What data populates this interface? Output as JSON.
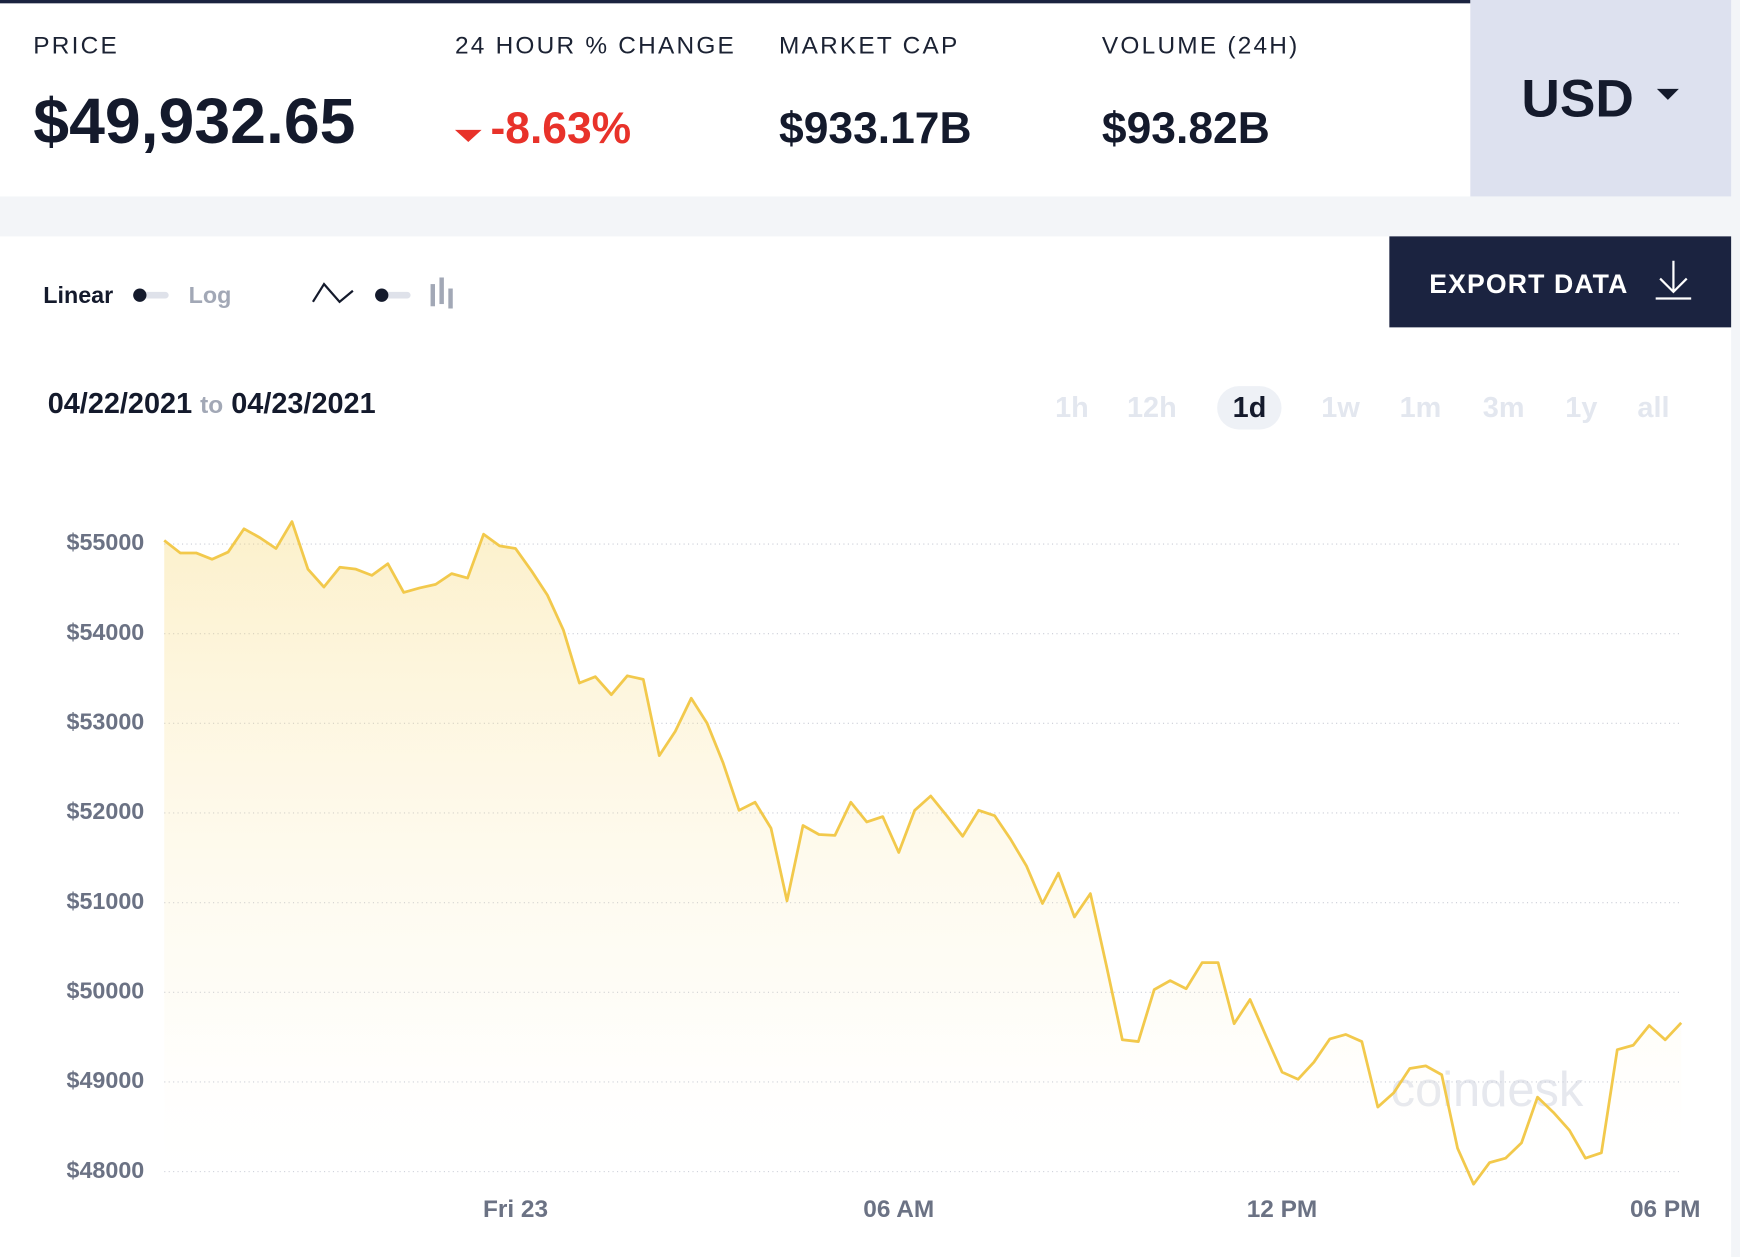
{
  "header": {
    "price_label": "PRICE",
    "price": "$49,932.65",
    "change_label": "24 HOUR % CHANGE",
    "change": "-8.63%",
    "market_cap_label": "MARKET CAP",
    "market_cap": "$933.17B",
    "volume_label": "VOLUME (24H)",
    "volume": "$93.82B",
    "currency": "USD"
  },
  "controls": {
    "linear": "Linear",
    "log": "Log",
    "export": "EXPORT DATA",
    "date_from": "04/22/2021",
    "date_to_word": "to",
    "date_to": "04/23/2021",
    "ranges": [
      "1h",
      "12h",
      "1d",
      "1w",
      "1m",
      "3m",
      "1y",
      "all"
    ],
    "active_range": "1d"
  },
  "watermark": "coindesk",
  "chart_data": {
    "type": "area",
    "color": "#f2c94c",
    "x": [
      -5.5,
      -5.25,
      -5,
      -4.75,
      -4.5,
      -4.25,
      -4,
      -3.75,
      -3.5,
      -3.25,
      -3,
      -2.75,
      -2.5,
      -2.25,
      -2,
      -1.75,
      -1.5,
      -1.25,
      -1,
      -0.75,
      -0.5,
      -0.25,
      0,
      0.25,
      0.5,
      0.75,
      1,
      1.25,
      1.5,
      1.75,
      2,
      2.25,
      2.5,
      2.75,
      3,
      3.25,
      3.5,
      3.75,
      4,
      4.25,
      4.5,
      4.75,
      5,
      5.25,
      5.5,
      5.75,
      6,
      6.25,
      6.5,
      6.75,
      7,
      7.25,
      7.5,
      7.75,
      8,
      8.25,
      8.5,
      8.75,
      9,
      9.25,
      9.5,
      9.75,
      10,
      10.25,
      10.5,
      10.75,
      11,
      11.25,
      11.5,
      11.75,
      12,
      12.25,
      12.5,
      12.75,
      13,
      13.25,
      13.5,
      13.75,
      14,
      14.25,
      14.5,
      14.75,
      15,
      15.25,
      15.5,
      15.75,
      16,
      16.25,
      16.5,
      16.75,
      17,
      17.25,
      17.5,
      17.75,
      18,
      18.25
    ],
    "values": [
      55040,
      54900,
      54900,
      54830,
      54910,
      55170,
      55070,
      54950,
      55250,
      54720,
      54520,
      54740,
      54720,
      54650,
      54780,
      54460,
      54510,
      54550,
      54670,
      54620,
      55110,
      54980,
      54950,
      54700,
      54430,
      54040,
      53450,
      53520,
      53320,
      53530,
      53490,
      52640,
      52910,
      53280,
      53000,
      52560,
      52030,
      52120,
      51830,
      51020,
      51860,
      51760,
      51750,
      52120,
      51900,
      51960,
      51560,
      52030,
      52190,
      51970,
      51740,
      52030,
      51970,
      51710,
      51410,
      50990,
      51330,
      50840,
      51100,
      50300,
      49470,
      49450,
      50030,
      50130,
      50040,
      50330,
      50330,
      49650,
      49920,
      49510,
      49110,
      49030,
      49220,
      49480,
      49530,
      49450,
      48720,
      48880,
      49150,
      49180,
      49080,
      48260,
      47860,
      48100,
      48150,
      48320,
      48830,
      48660,
      48460,
      48150,
      48210,
      49360,
      49410,
      49630,
      49470,
      49660
    ],
    "xlim": [
      -5.5,
      18.25
    ],
    "xticks": [
      {
        "value": 0,
        "label": "Fri 23"
      },
      {
        "value": 6,
        "label": "06 AM"
      },
      {
        "value": 12,
        "label": "12 PM"
      },
      {
        "value": 18,
        "label": "06 PM"
      }
    ],
    "ylim": [
      47750,
      55300
    ],
    "yticks": [
      {
        "value": 48000,
        "label": "$48000"
      },
      {
        "value": 49000,
        "label": "$49000"
      },
      {
        "value": 50000,
        "label": "$50000"
      },
      {
        "value": 51000,
        "label": "$51000"
      },
      {
        "value": 52000,
        "label": "$52000"
      },
      {
        "value": 53000,
        "label": "$53000"
      },
      {
        "value": 54000,
        "label": "$54000"
      },
      {
        "value": 55000,
        "label": "$55000"
      }
    ],
    "grid": true
  }
}
